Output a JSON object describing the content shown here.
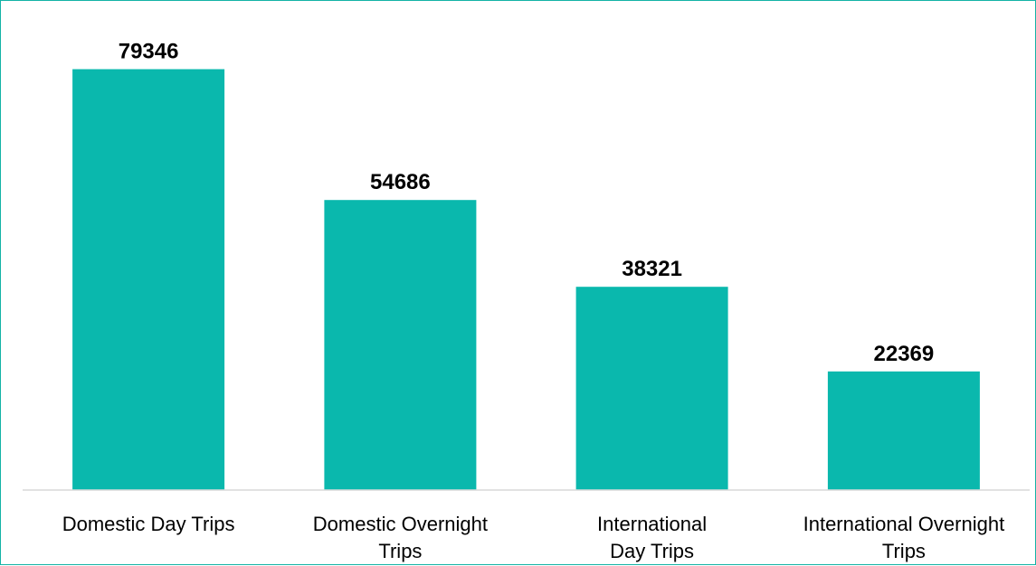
{
  "chart_data": {
    "type": "bar",
    "categories": [
      [
        "Domestic Day Trips"
      ],
      [
        "Domestic Overnight",
        "Trips"
      ],
      [
        "International",
        "Day Trips"
      ],
      [
        "International Overnight",
        "Trips"
      ]
    ],
    "values": [
      79346,
      54686,
      38321,
      22369
    ],
    "title": "",
    "xlabel": "",
    "ylabel": "",
    "ylim": [
      0,
      90000
    ],
    "grid": false,
    "legend": "none",
    "data_labels": true,
    "colors": {
      "bar": "#0ab8ad",
      "axis": "#d9d9d9",
      "border": "#13b3a6"
    }
  }
}
